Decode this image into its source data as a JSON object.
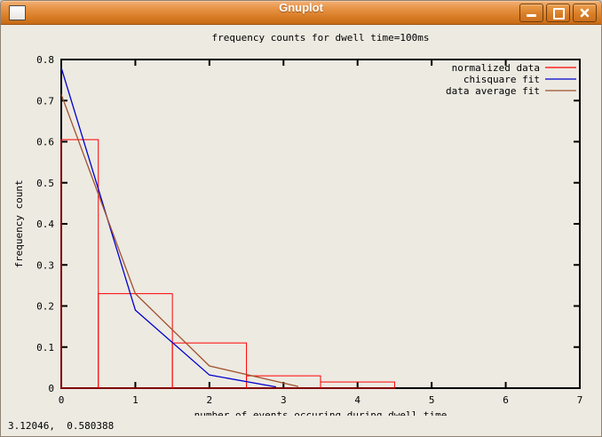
{
  "window": {
    "title": "Gnuplot",
    "icon": "blank-window-icon",
    "buttons": [
      {
        "name": "minimize"
      },
      {
        "name": "maximize"
      },
      {
        "name": "close"
      }
    ]
  },
  "status_bar": {
    "coordinates": "3.12046,  0.580388"
  },
  "chart_data": {
    "type": "bar",
    "subtype": "histogram-with-line-fits",
    "title": "frequency counts for dwell time=100ms",
    "xlabel": "number of events occuring during dwell time",
    "ylabel": "frequency count",
    "xlim": [
      0,
      7
    ],
    "ylim": [
      0,
      0.8
    ],
    "xticks": [
      0,
      1,
      2,
      3,
      4,
      5,
      6,
      7
    ],
    "xtick_labels": [
      "0",
      "1",
      "2",
      "3",
      "4",
      "5",
      "6",
      "7"
    ],
    "yticks": [
      0,
      0.1,
      0.2,
      0.3,
      0.4,
      0.5,
      0.6,
      0.7,
      0.8
    ],
    "ytick_labels": [
      "0",
      "0.1",
      "0.2",
      "0.3",
      "0.4",
      "0.5",
      "0.6",
      "0.7",
      "0.8"
    ],
    "grid": false,
    "legend_position": "top-right",
    "background_color": "#edeae2",
    "border_color": "#000000",
    "series": [
      {
        "name": "normalized data",
        "type": "step-histogram",
        "color": "#ff0000",
        "bin_edges": [
          0,
          0.5,
          1.5,
          2.5,
          3.5,
          4.5
        ],
        "counts": [
          0.605,
          0.23,
          0.11,
          0.03,
          0.015
        ]
      },
      {
        "name": "chisquare fit",
        "type": "line",
        "color": "#0000cd",
        "points": [
          [
            0,
            0.78
          ],
          [
            1,
            0.19
          ],
          [
            2,
            0.032
          ],
          [
            2.9,
            0.003
          ]
        ]
      },
      {
        "name": "data average fit",
        "type": "line",
        "color": "#a0522d",
        "points": [
          [
            0,
            0.715
          ],
          [
            1,
            0.23
          ],
          [
            2,
            0.054
          ],
          [
            3.2,
            0.004
          ]
        ]
      }
    ]
  }
}
